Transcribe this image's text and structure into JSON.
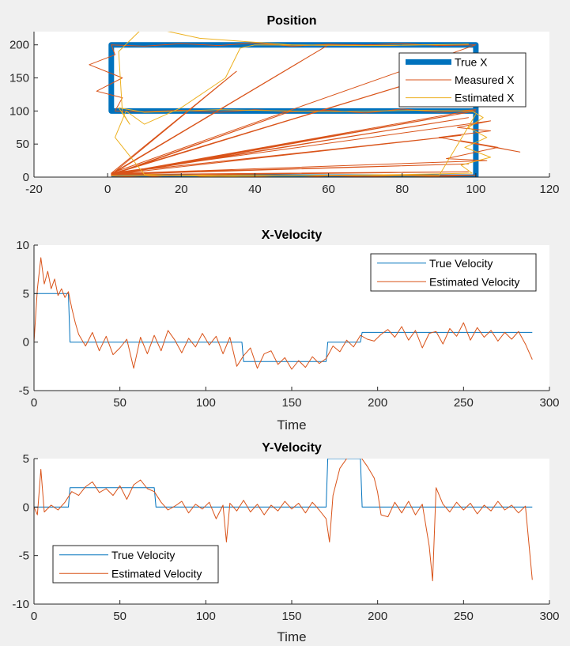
{
  "colors": {
    "blue": "#0072BD",
    "orange": "#D95319",
    "yellow": "#EDB120",
    "axes": "#262626",
    "background": "#f0f0f0",
    "plot": "#ffffff"
  },
  "chart_data": [
    {
      "type": "line",
      "title": "Position",
      "xlabel": "",
      "ylabel": "",
      "xlim": [
        -20,
        120
      ],
      "ylim": [
        0,
        220
      ],
      "xticks": [
        "-20",
        "0",
        "20",
        "40",
        "60",
        "80",
        "100",
        "120"
      ],
      "yticks": [
        "0",
        "50",
        "100",
        "150",
        "200"
      ],
      "legend": {
        "placement": "top-right",
        "entries": [
          "True X",
          "Measured X",
          "Estimated X"
        ]
      },
      "series": [
        {
          "name": "True X",
          "color": "#0072BD",
          "x": [
            1,
            100,
            100,
            1,
            1,
            100,
            100,
            1
          ],
          "y": [
            0,
            0,
            100,
            100,
            200,
            200,
            0,
            0
          ]
        },
        {
          "name": "Measured X",
          "color": "#D95319",
          "x": [
            1,
            10,
            20,
            30,
            40,
            50,
            60,
            70,
            80,
            90,
            100,
            1,
            98,
            1,
            98,
            1,
            103,
            92,
            106,
            96,
            112,
            90,
            104,
            95,
            104,
            1,
            96,
            1,
            98,
            1,
            100,
            1,
            100,
            90,
            80,
            70,
            60,
            50,
            40,
            30,
            20,
            10,
            2,
            4,
            -3,
            4,
            -5,
            2,
            1,
            10,
            20,
            30,
            40,
            50,
            60,
            70,
            80,
            90,
            100,
            1,
            35,
            1,
            96,
            1,
            60,
            1,
            50,
            1,
            100,
            1
          ],
          "y": [
            0,
            2,
            -2,
            3,
            1,
            -1,
            2,
            1,
            2,
            1,
            3,
            2,
            8,
            4,
            20,
            5,
            25,
            28,
            45,
            55,
            38,
            60,
            70,
            75,
            85,
            6,
            63,
            4,
            90,
            3,
            100,
            4,
            102,
            98,
            103,
            97,
            101,
            99,
            102,
            98,
            101,
            99,
            100,
            120,
            130,
            150,
            170,
            185,
            200,
            198,
            202,
            199,
            203,
            198,
            201,
            200,
            202,
            199,
            200,
            6,
            160,
            4,
            165,
            5,
            200,
            4,
            100,
            3,
            100,
            2
          ]
        },
        {
          "name": "Estimated X",
          "color": "#EDB120",
          "x": [
            1,
            20,
            50,
            80,
            99,
            96,
            104,
            97,
            103,
            98,
            102,
            99,
            85,
            60,
            30,
            10,
            3,
            6,
            4,
            3,
            10,
            25,
            50,
            75,
            98,
            70,
            40,
            36,
            32,
            20,
            10,
            5,
            2,
            10,
            30,
            60,
            90,
            100
          ],
          "y": [
            2,
            3,
            2,
            4,
            6,
            18,
            30,
            45,
            60,
            75,
            90,
            100,
            101,
            99,
            102,
            98,
            105,
            80,
            98,
            190,
            228,
            210,
            200,
            199,
            201,
            199,
            200,
            195,
            150,
            105,
            80,
            100,
            60,
            4,
            1,
            3,
            2,
            95
          ]
        }
      ]
    },
    {
      "type": "line",
      "title": "X-Velocity",
      "xlabel": "Time",
      "ylabel": "",
      "xlim": [
        0,
        300
      ],
      "ylim": [
        -5,
        10
      ],
      "xticks": [
        "0",
        "50",
        "100",
        "150",
        "200",
        "250",
        "300"
      ],
      "yticks": [
        "-5",
        "0",
        "5",
        "10"
      ],
      "legend": {
        "placement": "top-right",
        "entries": [
          "True Velocity",
          "Estimated Velocity"
        ]
      },
      "series": [
        {
          "name": "True Velocity",
          "color": "#0072BD",
          "x": [
            0,
            20,
            21,
            121,
            122,
            170,
            171,
            190,
            191,
            290
          ],
          "y": [
            5,
            5,
            0,
            0,
            -2,
            -2,
            0,
            0,
            1,
            1
          ]
        },
        {
          "name": "Estimated Velocity",
          "color": "#D95319",
          "x": [
            0,
            2,
            4,
            6,
            8,
            10,
            12,
            14,
            16,
            18,
            20,
            22,
            24,
            26,
            30,
            34,
            38,
            42,
            46,
            50,
            54,
            58,
            62,
            66,
            70,
            74,
            78,
            82,
            86,
            90,
            94,
            98,
            102,
            106,
            110,
            114,
            118,
            122,
            126,
            130,
            134,
            138,
            142,
            146,
            150,
            154,
            158,
            162,
            166,
            170,
            174,
            178,
            182,
            186,
            190,
            194,
            198,
            202,
            206,
            210,
            214,
            218,
            222,
            226,
            230,
            234,
            238,
            242,
            246,
            250,
            254,
            258,
            262,
            266,
            270,
            274,
            278,
            282,
            286,
            290
          ],
          "y": [
            0,
            5.5,
            8.7,
            6,
            7.3,
            5.5,
            6.5,
            4.8,
            5.5,
            4.6,
            5.2,
            3.5,
            2,
            0.8,
            -0.4,
            1,
            -0.9,
            0.6,
            -1.3,
            -0.6,
            0.3,
            -2.7,
            0.5,
            -1.2,
            0.7,
            -0.9,
            1.2,
            0.2,
            -1.1,
            0.4,
            -0.5,
            0.9,
            -0.3,
            0.6,
            -1.2,
            0.5,
            -2.5,
            -1.4,
            -0.6,
            -2.7,
            -1.2,
            -0.9,
            -2.3,
            -1.6,
            -2.8,
            -1.9,
            -2.6,
            -1.5,
            -2.2,
            -1.7,
            -0.4,
            -1,
            0.2,
            -0.5,
            0.7,
            0.3,
            0.1,
            0.8,
            1.3,
            0.5,
            1.6,
            0.2,
            1.2,
            -0.6,
            0.9,
            1.1,
            -0.2,
            1.4,
            0.6,
            2,
            0.2,
            1.5,
            0.5,
            1.2,
            0.1,
            1,
            0.3,
            1.1,
            -0.2,
            -1.8
          ]
        }
      ]
    },
    {
      "type": "line",
      "title": "Y-Velocity",
      "xlabel": "Time",
      "ylabel": "",
      "xlim": [
        0,
        300
      ],
      "ylim": [
        -10,
        5
      ],
      "xticks": [
        "0",
        "50",
        "100",
        "150",
        "200",
        "250",
        "300"
      ],
      "yticks": [
        "-10",
        "-5",
        "0",
        "5"
      ],
      "legend": {
        "placement": "bottom-left",
        "entries": [
          "True Velocity",
          "Estimated Velocity"
        ]
      },
      "series": [
        {
          "name": "True Velocity",
          "color": "#0072BD",
          "x": [
            0,
            20,
            21,
            70,
            71,
            170,
            171,
            190,
            191,
            290
          ],
          "y": [
            0,
            0,
            2,
            2,
            0,
            0,
            5,
            5,
            0,
            0
          ]
        },
        {
          "name": "Estimated Velocity",
          "color": "#D95319",
          "x": [
            0,
            2,
            4,
            6,
            10,
            14,
            18,
            22,
            26,
            30,
            34,
            38,
            42,
            46,
            50,
            54,
            58,
            62,
            66,
            70,
            74,
            78,
            82,
            86,
            90,
            94,
            98,
            102,
            106,
            110,
            112,
            114,
            118,
            122,
            126,
            130,
            134,
            138,
            142,
            146,
            150,
            154,
            158,
            162,
            166,
            170,
            172,
            174,
            178,
            182,
            186,
            190,
            194,
            198,
            200,
            202,
            206,
            210,
            214,
            218,
            222,
            226,
            230,
            232,
            234,
            238,
            242,
            246,
            250,
            254,
            258,
            262,
            266,
            270,
            274,
            278,
            282,
            286,
            290
          ],
          "y": [
            0,
            -0.8,
            3.9,
            -0.5,
            0.2,
            -0.3,
            0.5,
            1.6,
            1.2,
            2.1,
            2.6,
            1.5,
            1.9,
            1.2,
            2.2,
            0.8,
            2.3,
            2.8,
            1.9,
            1.6,
            0.5,
            -0.3,
            0.1,
            0.6,
            -0.6,
            0.3,
            -0.2,
            0.5,
            -1.2,
            0.2,
            -3.6,
            0.4,
            -0.4,
            0.7,
            -0.5,
            0.3,
            -0.8,
            0.2,
            -0.4,
            0.6,
            -0.2,
            0.4,
            -0.6,
            0.5,
            -0.3,
            -1.2,
            -3.6,
            1.2,
            4,
            5,
            5.3,
            5.2,
            4.2,
            3,
            1.5,
            -0.8,
            -1,
            0.5,
            -0.6,
            0.6,
            -0.8,
            0.3,
            -4,
            -7.6,
            2,
            0.3,
            -0.5,
            0.5,
            -0.3,
            0.4,
            -0.7,
            0.2,
            -0.4,
            0.6,
            -0.3,
            0.2,
            -0.6,
            0.1,
            -7.5
          ]
        }
      ]
    }
  ]
}
